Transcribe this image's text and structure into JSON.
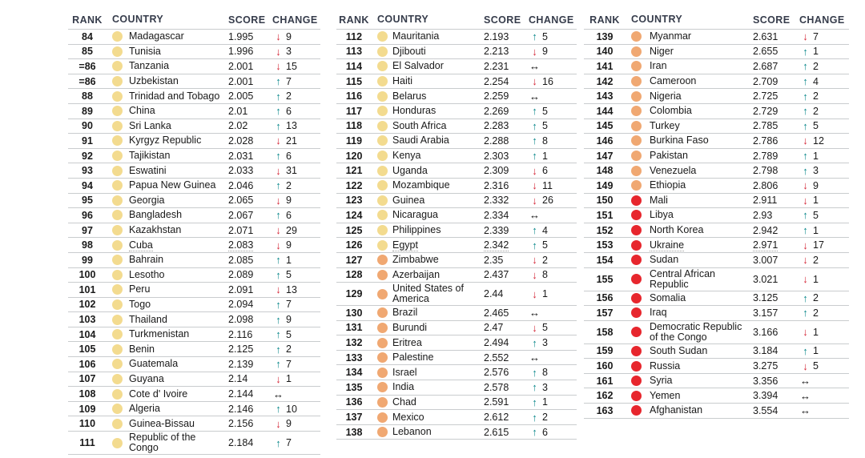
{
  "colors": {
    "dot_yellow": "#F3DB8F",
    "dot_orange": "#F0A872",
    "dot_red": "#E7262D",
    "arrow_up": "#0F8A8D",
    "arrow_down": "#D5293A",
    "arrow_neutral": "#111111",
    "header_text": "#363C4B",
    "row_text": "#191919",
    "divider": "#C9CCCE"
  },
  "headers": [
    "RANK",
    "COUNTRY",
    "SCORE",
    "CHANGE"
  ],
  "tables": [
    {
      "rows": [
        {
          "rank": "84",
          "country": "Madagascar",
          "score": "1.995",
          "change_dir": "down",
          "change": "9",
          "tier": "yellow"
        },
        {
          "rank": "85",
          "country": "Tunisia",
          "score": "1.996",
          "change_dir": "down",
          "change": "3",
          "tier": "yellow"
        },
        {
          "rank": "=86",
          "country": "Tanzania",
          "score": "2.001",
          "change_dir": "down",
          "change": "15",
          "tier": "yellow"
        },
        {
          "rank": "=86",
          "country": "Uzbekistan",
          "score": "2.001",
          "change_dir": "up",
          "change": "7",
          "tier": "yellow"
        },
        {
          "rank": "88",
          "country": "Trinidad and Tobago",
          "score": "2.005",
          "change_dir": "up",
          "change": "2",
          "tier": "yellow"
        },
        {
          "rank": "89",
          "country": "China",
          "score": "2.01",
          "change_dir": "up",
          "change": "6",
          "tier": "yellow"
        },
        {
          "rank": "90",
          "country": "Sri Lanka",
          "score": "2.02",
          "change_dir": "up",
          "change": "13",
          "tier": "yellow"
        },
        {
          "rank": "91",
          "country": "Kyrgyz Republic",
          "score": "2.028",
          "change_dir": "down",
          "change": "21",
          "tier": "yellow"
        },
        {
          "rank": "92",
          "country": "Tajikistan",
          "score": "2.031",
          "change_dir": "up",
          "change": "6",
          "tier": "yellow"
        },
        {
          "rank": "93",
          "country": "Eswatini",
          "score": "2.033",
          "change_dir": "down",
          "change": "31",
          "tier": "yellow"
        },
        {
          "rank": "94",
          "country": "Papua New Guinea",
          "score": "2.046",
          "change_dir": "up",
          "change": "2",
          "tier": "yellow"
        },
        {
          "rank": "95",
          "country": "Georgia",
          "score": "2.065",
          "change_dir": "down",
          "change": "9",
          "tier": "yellow"
        },
        {
          "rank": "96",
          "country": "Bangladesh",
          "score": "2.067",
          "change_dir": "up",
          "change": "6",
          "tier": "yellow"
        },
        {
          "rank": "97",
          "country": "Kazakhstan",
          "score": "2.071",
          "change_dir": "down",
          "change": "29",
          "tier": "yellow"
        },
        {
          "rank": "98",
          "country": "Cuba",
          "score": "2.083",
          "change_dir": "down",
          "change": "9",
          "tier": "yellow",
          "linked": true
        },
        {
          "rank": "99",
          "country": "Bahrain",
          "score": "2.085",
          "change_dir": "up",
          "change": "1",
          "tier": "yellow"
        },
        {
          "rank": "100",
          "country": "Lesotho",
          "score": "2.089",
          "change_dir": "up",
          "change": "5",
          "tier": "yellow"
        },
        {
          "rank": "101",
          "country": "Peru",
          "score": "2.091",
          "change_dir": "down",
          "change": "13",
          "tier": "yellow"
        },
        {
          "rank": "102",
          "country": "Togo",
          "score": "2.094",
          "change_dir": "up",
          "change": "7",
          "tier": "yellow"
        },
        {
          "rank": "103",
          "country": "Thailand",
          "score": "2.098",
          "change_dir": "up",
          "change": "9",
          "tier": "yellow"
        },
        {
          "rank": "104",
          "country": "Turkmenistan",
          "score": "2.116",
          "change_dir": "up",
          "change": "5",
          "tier": "yellow"
        },
        {
          "rank": "105",
          "country": "Benin",
          "score": "2.125",
          "change_dir": "up",
          "change": "2",
          "tier": "yellow"
        },
        {
          "rank": "106",
          "country": "Guatemala",
          "score": "2.139",
          "change_dir": "up",
          "change": "7",
          "tier": "yellow"
        },
        {
          "rank": "107",
          "country": "Guyana",
          "score": "2.14",
          "change_dir": "down",
          "change": "1",
          "tier": "yellow"
        },
        {
          "rank": "108",
          "country": "Cote d' Ivoire",
          "score": "2.144",
          "change_dir": "neutral",
          "change": "",
          "tier": "yellow"
        },
        {
          "rank": "109",
          "country": "Algeria",
          "score": "2.146",
          "change_dir": "up",
          "change": "10",
          "tier": "yellow"
        },
        {
          "rank": "110",
          "country": "Guinea-Bissau",
          "score": "2.156",
          "change_dir": "down",
          "change": "9",
          "tier": "yellow"
        },
        {
          "rank": "111",
          "country": "Republic of the Congo",
          "score": "2.184",
          "change_dir": "up",
          "change": "7",
          "tier": "yellow"
        }
      ]
    },
    {
      "rows": [
        {
          "rank": "112",
          "country": "Mauritania",
          "score": "2.193",
          "change_dir": "up",
          "change": "5",
          "tier": "yellow"
        },
        {
          "rank": "113",
          "country": "Djibouti",
          "score": "2.213",
          "change_dir": "down",
          "change": "9",
          "tier": "yellow"
        },
        {
          "rank": "114",
          "country": "El Salvador",
          "score": "2.231",
          "change_dir": "neutral",
          "change": "",
          "tier": "yellow"
        },
        {
          "rank": "115",
          "country": "Haiti",
          "score": "2.254",
          "change_dir": "down",
          "change": "16",
          "tier": "yellow"
        },
        {
          "rank": "116",
          "country": "Belarus",
          "score": "2.259",
          "change_dir": "neutral",
          "change": "",
          "tier": "yellow"
        },
        {
          "rank": "117",
          "country": "Honduras",
          "score": "2.269",
          "change_dir": "up",
          "change": "5",
          "tier": "yellow"
        },
        {
          "rank": "118",
          "country": "South Africa",
          "score": "2.283",
          "change_dir": "up",
          "change": "5",
          "tier": "yellow"
        },
        {
          "rank": "119",
          "country": "Saudi Arabia",
          "score": "2.288",
          "change_dir": "up",
          "change": "8",
          "tier": "yellow"
        },
        {
          "rank": "120",
          "country": "Kenya",
          "score": "2.303",
          "change_dir": "up",
          "change": "1",
          "tier": "yellow"
        },
        {
          "rank": "121",
          "country": "Uganda",
          "score": "2.309",
          "change_dir": "down",
          "change": "6",
          "tier": "yellow"
        },
        {
          "rank": "122",
          "country": "Mozambique",
          "score": "2.316",
          "change_dir": "down",
          "change": "11",
          "tier": "yellow"
        },
        {
          "rank": "123",
          "country": "Guinea",
          "score": "2.332",
          "change_dir": "down",
          "change": "26",
          "tier": "yellow"
        },
        {
          "rank": "124",
          "country": "Nicaragua",
          "score": "2.334",
          "change_dir": "neutral",
          "change": "",
          "tier": "yellow"
        },
        {
          "rank": "125",
          "country": "Philippines",
          "score": "2.339",
          "change_dir": "up",
          "change": "4",
          "tier": "yellow"
        },
        {
          "rank": "126",
          "country": "Egypt",
          "score": "2.342",
          "change_dir": "up",
          "change": "5",
          "tier": "yellow",
          "linked": true
        },
        {
          "rank": "127",
          "country": "Zimbabwe",
          "score": "2.35",
          "change_dir": "down",
          "change": "2",
          "tier": "orange"
        },
        {
          "rank": "128",
          "country": "Azerbaijan",
          "score": "2.437",
          "change_dir": "down",
          "change": "8",
          "tier": "orange"
        },
        {
          "rank": "129",
          "country": "United States of America",
          "score": "2.44",
          "change_dir": "down",
          "change": "1",
          "tier": "orange"
        },
        {
          "rank": "130",
          "country": "Brazil",
          "score": "2.465",
          "change_dir": "neutral",
          "change": "",
          "tier": "orange"
        },
        {
          "rank": "131",
          "country": "Burundi",
          "score": "2.47",
          "change_dir": "down",
          "change": "5",
          "tier": "orange"
        },
        {
          "rank": "132",
          "country": "Eritrea",
          "score": "2.494",
          "change_dir": "up",
          "change": "3",
          "tier": "orange"
        },
        {
          "rank": "133",
          "country": "Palestine",
          "score": "2.552",
          "change_dir": "neutral",
          "change": "",
          "tier": "orange"
        },
        {
          "rank": "134",
          "country": "Israel",
          "score": "2.576",
          "change_dir": "up",
          "change": "8",
          "tier": "orange"
        },
        {
          "rank": "135",
          "country": "India",
          "score": "2.578",
          "change_dir": "up",
          "change": "3",
          "tier": "orange"
        },
        {
          "rank": "136",
          "country": "Chad",
          "score": "2.591",
          "change_dir": "up",
          "change": "1",
          "tier": "orange"
        },
        {
          "rank": "137",
          "country": "Mexico",
          "score": "2.612",
          "change_dir": "up",
          "change": "2",
          "tier": "orange"
        },
        {
          "rank": "138",
          "country": "Lebanon",
          "score": "2.615",
          "change_dir": "up",
          "change": "6",
          "tier": "orange"
        }
      ]
    },
    {
      "rows": [
        {
          "rank": "139",
          "country": "Myanmar",
          "score": "2.631",
          "change_dir": "down",
          "change": "7",
          "tier": "orange"
        },
        {
          "rank": "140",
          "country": "Niger",
          "score": "2.655",
          "change_dir": "up",
          "change": "1",
          "tier": "orange"
        },
        {
          "rank": "141",
          "country": "Iran",
          "score": "2.687",
          "change_dir": "up",
          "change": "2",
          "tier": "orange"
        },
        {
          "rank": "142",
          "country": "Cameroon",
          "score": "2.709",
          "change_dir": "up",
          "change": "4",
          "tier": "orange"
        },
        {
          "rank": "143",
          "country": "Nigeria",
          "score": "2.725",
          "change_dir": "up",
          "change": "2",
          "tier": "orange"
        },
        {
          "rank": "144",
          "country": "Colombia",
          "score": "2.729",
          "change_dir": "up",
          "change": "2",
          "tier": "orange"
        },
        {
          "rank": "145",
          "country": "Turkey",
          "score": "2.785",
          "change_dir": "up",
          "change": "5",
          "tier": "orange"
        },
        {
          "rank": "146",
          "country": "Burkina Faso",
          "score": "2.786",
          "change_dir": "down",
          "change": "12",
          "tier": "orange"
        },
        {
          "rank": "147",
          "country": "Pakistan",
          "score": "2.789",
          "change_dir": "up",
          "change": "1",
          "tier": "orange"
        },
        {
          "rank": "148",
          "country": "Venezuela",
          "score": "2.798",
          "change_dir": "up",
          "change": "3",
          "tier": "orange"
        },
        {
          "rank": "149",
          "country": "Ethiopia",
          "score": "2.806",
          "change_dir": "down",
          "change": "9",
          "tier": "orange"
        },
        {
          "rank": "150",
          "country": "Mali",
          "score": "2.911",
          "change_dir": "down",
          "change": "1",
          "tier": "red"
        },
        {
          "rank": "151",
          "country": "Libya",
          "score": "2.93",
          "change_dir": "up",
          "change": "5",
          "tier": "red"
        },
        {
          "rank": "152",
          "country": "North Korea",
          "score": "2.942",
          "change_dir": "up",
          "change": "1",
          "tier": "red"
        },
        {
          "rank": "153",
          "country": "Ukraine",
          "score": "2.971",
          "change_dir": "down",
          "change": "17",
          "tier": "red",
          "linked": true
        },
        {
          "rank": "154",
          "country": "Sudan",
          "score": "3.007",
          "change_dir": "down",
          "change": "2",
          "tier": "red"
        },
        {
          "rank": "155",
          "country": "Central African Republic",
          "score": "3.021",
          "change_dir": "down",
          "change": "1",
          "tier": "red"
        },
        {
          "rank": "156",
          "country": "Somalia",
          "score": "3.125",
          "change_dir": "up",
          "change": "2",
          "tier": "red"
        },
        {
          "rank": "157",
          "country": "Iraq",
          "score": "3.157",
          "change_dir": "up",
          "change": "2",
          "tier": "red"
        },
        {
          "rank": "158",
          "country": "Democratic Republic of the Congo",
          "score": "3.166",
          "change_dir": "down",
          "change": "1",
          "tier": "red"
        },
        {
          "rank": "159",
          "country": "South Sudan",
          "score": "3.184",
          "change_dir": "up",
          "change": "1",
          "tier": "red"
        },
        {
          "rank": "160",
          "country": "Russia",
          "score": "3.275",
          "change_dir": "down",
          "change": "5",
          "tier": "red"
        },
        {
          "rank": "161",
          "country": "Syria",
          "score": "3.356",
          "change_dir": "neutral",
          "change": "",
          "tier": "red"
        },
        {
          "rank": "162",
          "country": "Yemen",
          "score": "3.394",
          "change_dir": "neutral",
          "change": "",
          "tier": "red"
        },
        {
          "rank": "163",
          "country": "Afghanistan",
          "score": "3.554",
          "change_dir": "neutral",
          "change": "",
          "tier": "red"
        }
      ]
    }
  ]
}
